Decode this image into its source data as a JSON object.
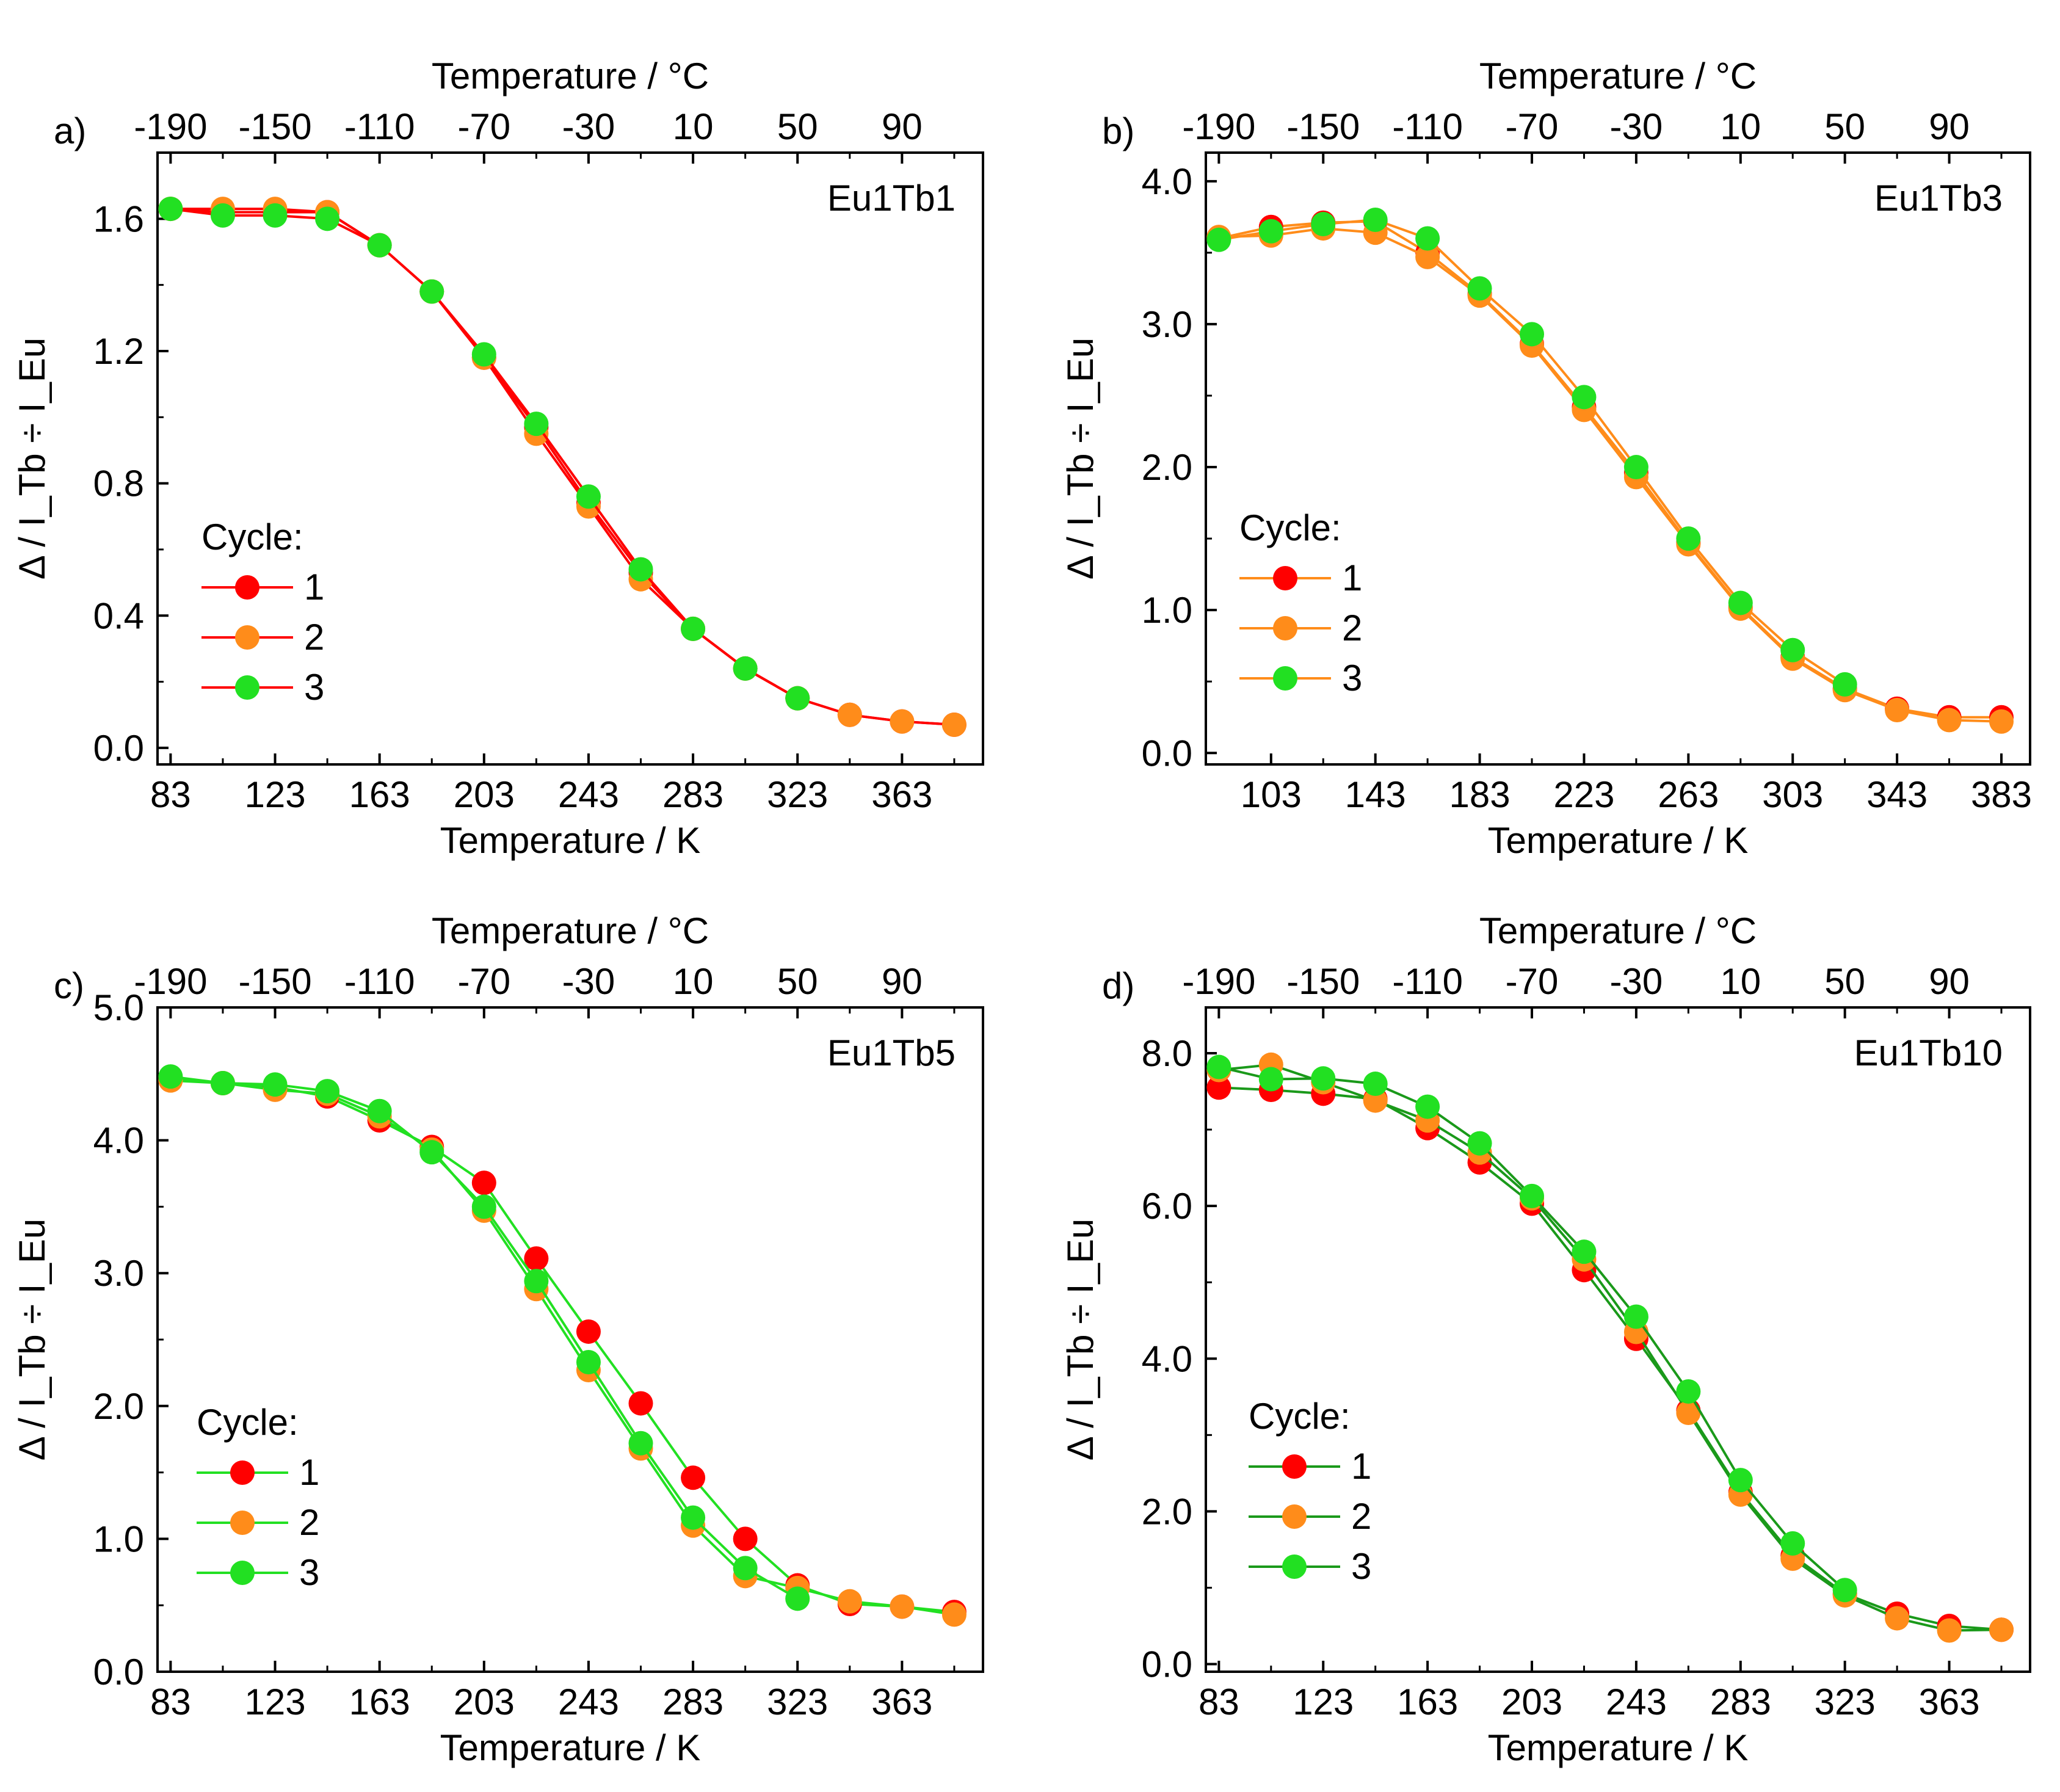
{
  "chart_data": [
    {
      "type": "line",
      "panel_label": "a)",
      "sample": "Eu1Tb1",
      "xlabel": "Temperature / K",
      "x2label": "Temperature / °C",
      "ylabel": "Δ / I_Tb ÷ I_Eu",
      "xlim": [
        78,
        394
      ],
      "ylim": [
        -0.05,
        1.8
      ],
      "xticks": [
        83,
        123,
        163,
        203,
        243,
        283,
        323,
        363
      ],
      "x2ticks": [
        -190,
        -150,
        -110,
        -70,
        -30,
        10,
        50,
        90
      ],
      "yticks": [
        0.0,
        0.4,
        0.8,
        1.2,
        1.6
      ],
      "ytick_labels": [
        "0.0",
        "0.4",
        "0.8",
        "1.2",
        "1.6"
      ],
      "line_color": "#ff0000",
      "legend_title": "Cycle:",
      "x": [
        83,
        103,
        123,
        143,
        163,
        183,
        203,
        223,
        243,
        263,
        283,
        303,
        323,
        343,
        363,
        383
      ],
      "series": [
        {
          "name": "1",
          "color": "#ff0000",
          "values": [
            1.63,
            1.62,
            1.62,
            1.62,
            1.52,
            1.38,
            1.18,
            0.97,
            0.74,
            0.53,
            0.36,
            0.24,
            0.15,
            0.1,
            0.08,
            0.07
          ]
        },
        {
          "name": "2",
          "color": "#ff8c1a",
          "values": [
            1.63,
            1.63,
            1.63,
            1.62,
            1.52,
            1.38,
            1.18,
            0.95,
            0.73,
            0.51,
            0.36,
            0.24,
            0.15,
            0.1,
            0.08,
            0.07
          ]
        },
        {
          "name": "3",
          "color": "#22e022",
          "values": [
            1.63,
            1.61,
            1.61,
            1.6,
            1.52,
            1.38,
            1.19,
            0.98,
            0.76,
            0.54,
            0.36,
            0.24,
            0.15,
            null,
            null,
            null
          ]
        }
      ]
    },
    {
      "type": "line",
      "panel_label": "b)",
      "sample": "Eu1Tb3",
      "xlabel": "Temperature / K",
      "x2label": "Temperature / °C",
      "ylabel": "Δ / I_Tb ÷ I_Eu",
      "xlim": [
        78,
        394
      ],
      "ylim": [
        -0.08,
        4.2
      ],
      "xticks": [
        103,
        143,
        183,
        223,
        263,
        303,
        343,
        383
      ],
      "x2ticks": [
        -190,
        -150,
        -110,
        -70,
        -30,
        10,
        50,
        90
      ],
      "yticks": [
        0.0,
        1.0,
        2.0,
        3.0,
        4.0
      ],
      "ytick_labels": [
        "0.0",
        "1.0",
        "2.0",
        "3.0",
        "4.0"
      ],
      "line_color": "#ff8c1a",
      "legend_title": "Cycle:",
      "x": [
        83,
        103,
        123,
        143,
        163,
        183,
        203,
        223,
        243,
        263,
        283,
        303,
        323,
        343,
        363,
        383
      ],
      "series": [
        {
          "name": "1",
          "color": "#ff0000",
          "values": [
            3.6,
            3.68,
            3.71,
            3.72,
            3.5,
            3.21,
            2.86,
            2.42,
            1.96,
            1.47,
            1.02,
            0.67,
            0.45,
            0.31,
            0.25,
            0.25
          ]
        },
        {
          "name": "2",
          "color": "#ff8c1a",
          "values": [
            3.61,
            3.62,
            3.67,
            3.64,
            3.47,
            3.2,
            2.85,
            2.4,
            1.93,
            1.46,
            1.01,
            0.66,
            0.44,
            0.3,
            0.23,
            0.22
          ]
        },
        {
          "name": "3",
          "color": "#22e022",
          "values": [
            3.59,
            3.65,
            3.7,
            3.73,
            3.6,
            3.25,
            2.93,
            2.49,
            2.0,
            1.5,
            1.05,
            0.72,
            0.48,
            null,
            null,
            null
          ]
        }
      ]
    },
    {
      "type": "line",
      "panel_label": "c)",
      "sample": "Eu1Tb5",
      "xlabel": "Temperature / K",
      "x2label": "Temperature / °C",
      "ylabel": "Δ / I_Tb ÷ I_Eu",
      "xlim": [
        78,
        394
      ],
      "ylim": [
        0.0,
        5.0
      ],
      "xticks": [
        83,
        123,
        163,
        203,
        243,
        283,
        323,
        363
      ],
      "x2ticks": [
        -190,
        -150,
        -110,
        -70,
        -30,
        10,
        50,
        90
      ],
      "yticks": [
        0.0,
        1.0,
        2.0,
        3.0,
        4.0,
        5.0
      ],
      "ytick_labels": [
        "0.0",
        "1.0",
        "2.0",
        "3.0",
        "4.0",
        "5.0"
      ],
      "line_color": "#22e022",
      "legend_title": "Cycle:",
      "x": [
        83,
        103,
        123,
        143,
        163,
        183,
        203,
        223,
        243,
        263,
        283,
        303,
        323,
        343,
        363,
        383
      ],
      "series": [
        {
          "name": "1",
          "color": "#ff0000",
          "values": [
            4.47,
            4.43,
            4.4,
            4.33,
            4.15,
            3.95,
            3.68,
            3.11,
            2.56,
            2.02,
            1.46,
            1.0,
            0.65,
            0.51,
            0.49,
            0.45
          ]
        },
        {
          "name": "2",
          "color": "#ff8c1a",
          "values": [
            4.45,
            4.43,
            4.38,
            4.35,
            4.18,
            3.93,
            3.47,
            2.88,
            2.27,
            1.68,
            1.1,
            0.72,
            0.63,
            0.53,
            0.49,
            0.43
          ]
        },
        {
          "name": "3",
          "color": "#22e022",
          "values": [
            4.48,
            4.43,
            4.42,
            4.37,
            4.22,
            3.91,
            3.5,
            2.94,
            2.33,
            1.72,
            1.16,
            0.78,
            0.55,
            null,
            null,
            null
          ]
        }
      ]
    },
    {
      "type": "line",
      "panel_label": "d)",
      "sample": "Eu1Tb10",
      "xlabel": "Temperature / K",
      "x2label": "Temperature / °C",
      "ylabel": "Δ / I_Tb ÷ I_Eu",
      "xlim": [
        78,
        394
      ],
      "ylim": [
        -0.1,
        8.6
      ],
      "xticks": [
        83,
        123,
        163,
        203,
        243,
        283,
        323,
        363
      ],
      "x2ticks": [
        -190,
        -150,
        -110,
        -70,
        -30,
        10,
        50,
        90
      ],
      "yticks": [
        0.0,
        2.0,
        4.0,
        6.0,
        8.0
      ],
      "ytick_labels": [
        "0.0",
        "2.0",
        "4.0",
        "6.0",
        "8.0"
      ],
      "line_color": "#1a991a",
      "legend_title": "Cycle:",
      "x": [
        83,
        103,
        123,
        143,
        163,
        183,
        203,
        223,
        243,
        263,
        283,
        303,
        323,
        343,
        363,
        383
      ],
      "series": [
        {
          "name": "1",
          "color": "#ff0000",
          "values": [
            7.55,
            7.52,
            7.47,
            7.4,
            7.02,
            6.57,
            6.03,
            5.16,
            4.26,
            3.32,
            2.25,
            1.42,
            0.92,
            0.66,
            0.5,
            0.45
          ]
        },
        {
          "name": "2",
          "color": "#ff8c1a",
          "values": [
            7.78,
            7.85,
            7.62,
            7.38,
            7.12,
            6.7,
            6.1,
            5.3,
            4.35,
            3.29,
            2.22,
            1.38,
            0.9,
            0.6,
            0.44,
            0.45
          ]
        },
        {
          "name": "3",
          "color": "#22e022",
          "values": [
            7.82,
            7.66,
            7.67,
            7.6,
            7.3,
            6.82,
            6.13,
            5.4,
            4.55,
            3.57,
            2.41,
            1.58,
            0.97,
            null,
            null,
            null
          ]
        }
      ]
    }
  ]
}
